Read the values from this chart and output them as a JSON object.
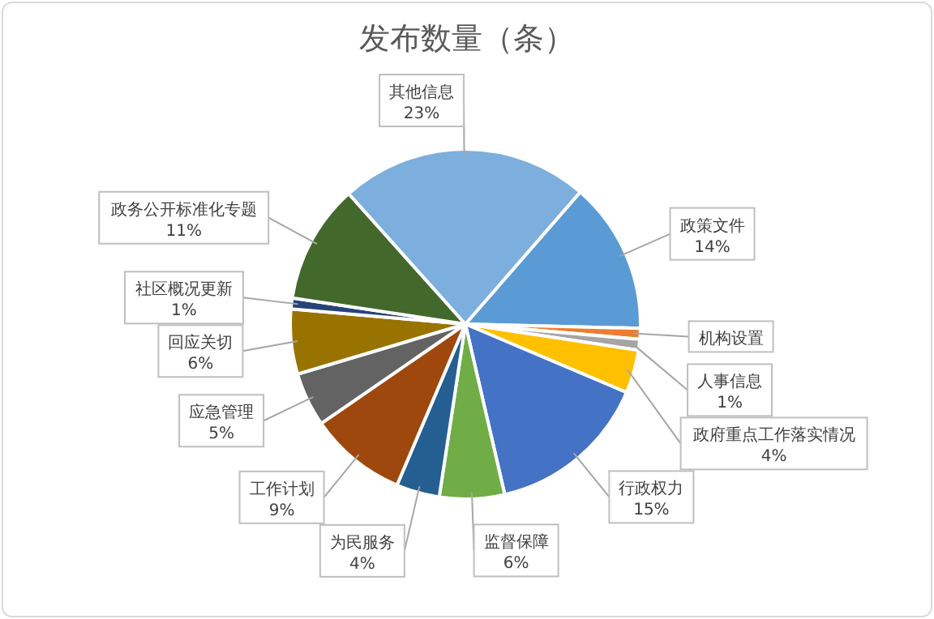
{
  "chart_data": {
    "type": "pie",
    "title": "发布数量（条）",
    "categories": [
      "政策文件",
      "机构设置",
      "人事信息",
      "政府重点工作落实情况",
      "行政权力",
      "监督保障",
      "为民服务",
      "工作计划",
      "应急管理",
      "回应关切",
      "社区概况更新",
      "政务公开标准化专题",
      "其他信息"
    ],
    "values": [
      14,
      1,
      1,
      4,
      15,
      6,
      4,
      9,
      5,
      6,
      1,
      11,
      23
    ],
    "value_labels": [
      "14%",
      null,
      "1%",
      "4%",
      "15%",
      "6%",
      "4%",
      "9%",
      "5%",
      "6%",
      "1%",
      "11%",
      "23%"
    ],
    "colors": [
      "#5b9bd5",
      "#ed7d31",
      "#a5a5a5",
      "#ffc000",
      "#4472c4",
      "#70ad47",
      "#255e91",
      "#9e480e",
      "#636363",
      "#997300",
      "#264478",
      "#43682b",
      "#7cafdd"
    ],
    "legend": false
  }
}
